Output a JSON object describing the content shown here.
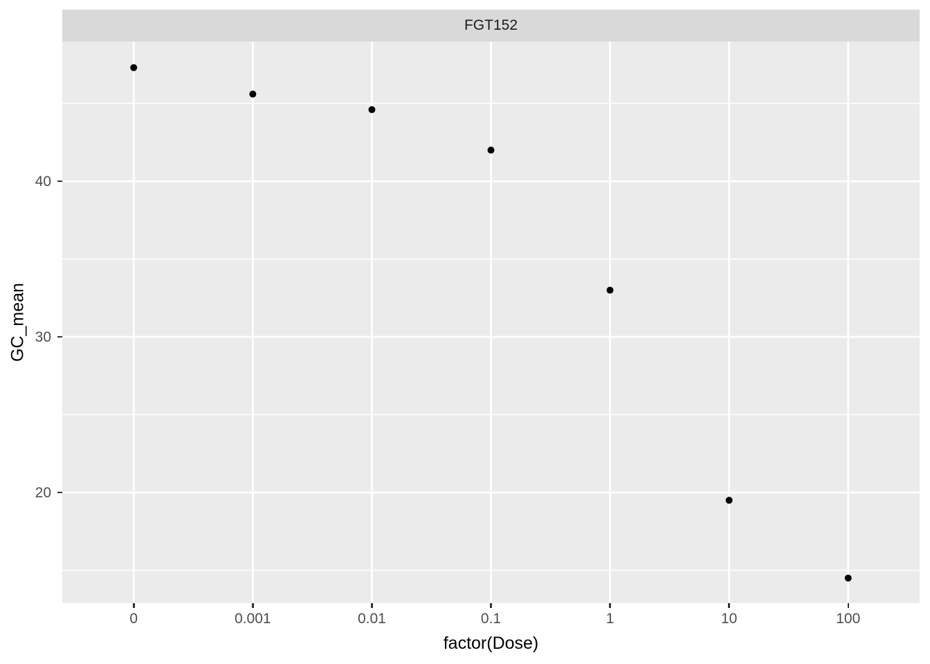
{
  "chart_data": {
    "type": "scatter",
    "title": "FGT152",
    "xlabel": "factor(Dose)",
    "ylabel": "GC_mean",
    "categories": [
      "0",
      "0.001",
      "0.01",
      "0.1",
      "1",
      "10",
      "100"
    ],
    "series": [
      {
        "name": "GC_mean",
        "values": [
          47.3,
          45.6,
          44.6,
          42.0,
          33.0,
          19.5,
          14.5
        ]
      }
    ],
    "ylim": [
      12.89,
      48.98
    ],
    "y_major_ticks": [
      "20",
      "30",
      "40"
    ],
    "y_major_values": [
      20,
      30,
      40
    ],
    "y_minor_gridlines": [
      15,
      25,
      35,
      45
    ],
    "grid": "major and minor white gridlines on gray panel",
    "legend_position": "none",
    "style": {
      "panel_background": "#EBEBEB",
      "strip_background": "#D9D9D9",
      "gridline_color": "#FFFFFF",
      "point_color": "#000000",
      "point_radius": 5,
      "axis_text_color": "#4D4D4D",
      "tick_mark_color": "#333333",
      "strip_text_color": "#1A1A1A",
      "axis_title_color": "#000000"
    }
  }
}
